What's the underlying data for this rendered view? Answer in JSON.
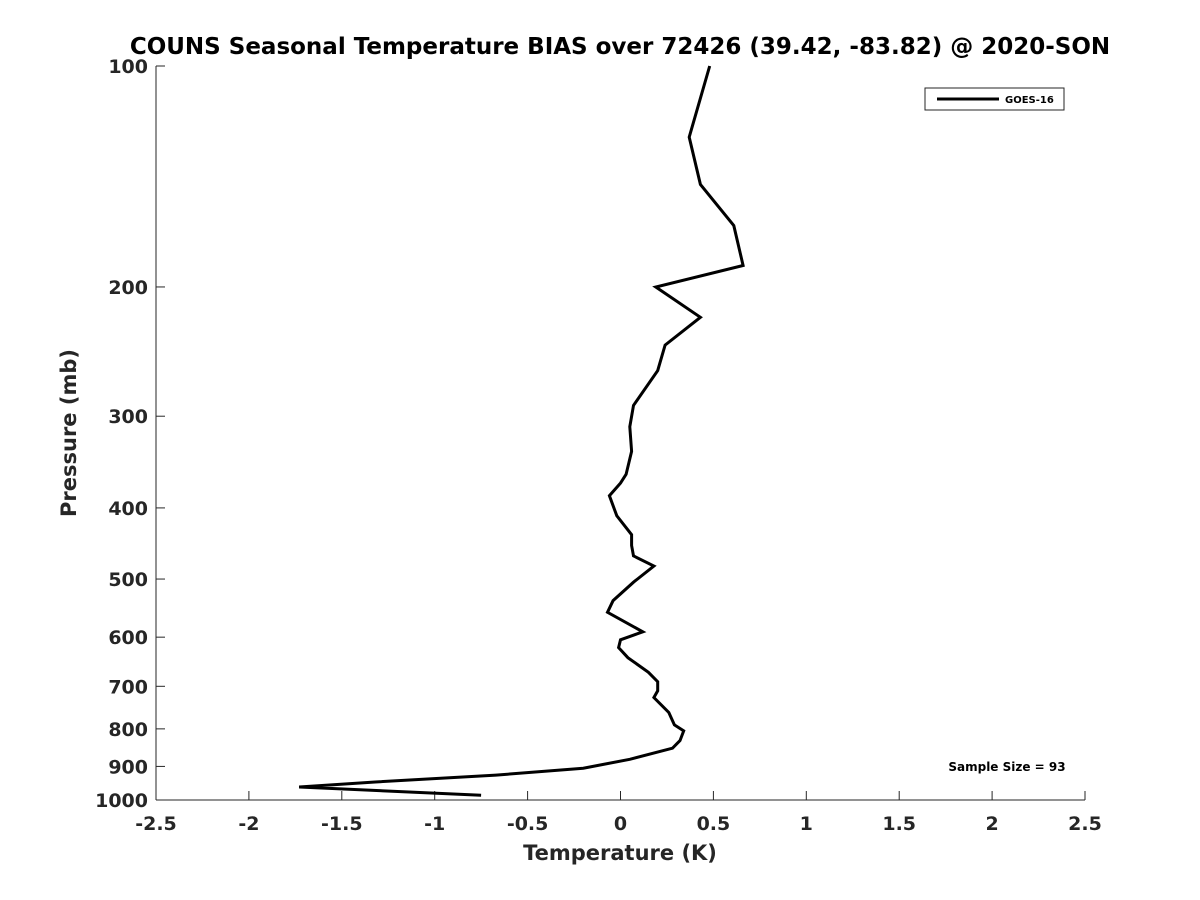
{
  "chart_data": {
    "type": "line",
    "title": "COUNS Seasonal Temperature BIAS over 72426 (39.42, -83.82) @ 2020-SON",
    "xlabel": "Temperature (K)",
    "ylabel": "Pressure (mb)",
    "xlim": [
      -2.5,
      2.5
    ],
    "ylim": [
      100,
      1000
    ],
    "yscale": "log",
    "yreversed": true,
    "xticks": [
      -2.5,
      -2,
      -1.5,
      -1,
      -0.5,
      0,
      0.5,
      1,
      1.5,
      2,
      2.5
    ],
    "xtick_labels": [
      "-2.5",
      "-2",
      "-1.5",
      "-1",
      "-0.5",
      "0",
      "0.5",
      "1",
      "1.5",
      "2",
      "2.5"
    ],
    "yticks": [
      100,
      200,
      300,
      400,
      500,
      600,
      700,
      800,
      900,
      1000
    ],
    "ytick_labels": [
      "100",
      "200",
      "300",
      "400",
      "500",
      "600",
      "700",
      "800",
      "900",
      "1000"
    ],
    "grid": false,
    "legend_position": "top-right",
    "annotation": "Sample Size = 93",
    "colors": {
      "line": "#000000",
      "axis": "#262626"
    },
    "series": [
      {
        "name": "GOES-16",
        "points": [
          {
            "x": 0.48,
            "p": 100
          },
          {
            "x": 0.37,
            "p": 125
          },
          {
            "x": 0.43,
            "p": 145
          },
          {
            "x": 0.61,
            "p": 165
          },
          {
            "x": 0.66,
            "p": 187
          },
          {
            "x": 0.19,
            "p": 200
          },
          {
            "x": 0.43,
            "p": 220
          },
          {
            "x": 0.24,
            "p": 240
          },
          {
            "x": 0.2,
            "p": 260
          },
          {
            "x": 0.07,
            "p": 290
          },
          {
            "x": 0.05,
            "p": 310
          },
          {
            "x": 0.06,
            "p": 335
          },
          {
            "x": 0.03,
            "p": 360
          },
          {
            "x": 0.0,
            "p": 370
          },
          {
            "x": -0.06,
            "p": 385
          },
          {
            "x": -0.02,
            "p": 410
          },
          {
            "x": 0.06,
            "p": 435
          },
          {
            "x": 0.06,
            "p": 450
          },
          {
            "x": 0.07,
            "p": 465
          },
          {
            "x": 0.18,
            "p": 480
          },
          {
            "x": 0.07,
            "p": 505
          },
          {
            "x": -0.04,
            "p": 535
          },
          {
            "x": -0.07,
            "p": 555
          },
          {
            "x": 0.12,
            "p": 590
          },
          {
            "x": 0.0,
            "p": 605
          },
          {
            "x": -0.01,
            "p": 620
          },
          {
            "x": 0.04,
            "p": 640
          },
          {
            "x": 0.15,
            "p": 670
          },
          {
            "x": 0.2,
            "p": 690
          },
          {
            "x": 0.2,
            "p": 710
          },
          {
            "x": 0.18,
            "p": 725
          },
          {
            "x": 0.26,
            "p": 760
          },
          {
            "x": 0.29,
            "p": 790
          },
          {
            "x": 0.34,
            "p": 805
          },
          {
            "x": 0.32,
            "p": 830
          },
          {
            "x": 0.28,
            "p": 850
          },
          {
            "x": 0.05,
            "p": 880
          },
          {
            "x": -0.2,
            "p": 905
          },
          {
            "x": -0.67,
            "p": 925
          },
          {
            "x": -1.32,
            "p": 945
          },
          {
            "x": -1.73,
            "p": 960
          },
          {
            "x": -0.75,
            "p": 985
          }
        ]
      }
    ]
  }
}
